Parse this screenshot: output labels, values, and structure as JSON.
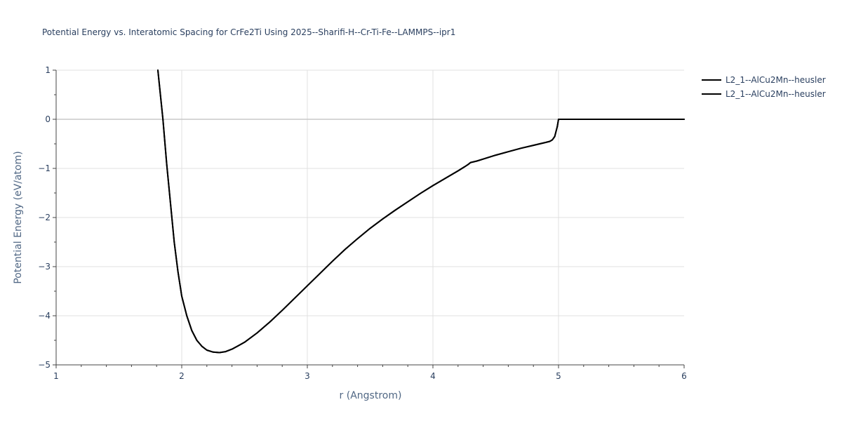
{
  "chart_data": {
    "type": "line",
    "title": "Potential Energy vs. Interatomic Spacing for CrFe2Ti Using 2025--Sharifi-H--Cr-Ti-Fe--LAMMPS--ipr1",
    "xlabel": "r (Angstrom)",
    "ylabel": "Potential Energy (eV/atom)",
    "xlim": [
      1,
      6
    ],
    "ylim": [
      -5,
      1
    ],
    "xticks": [
      1,
      2,
      3,
      4,
      5,
      6
    ],
    "yticks": [
      1,
      0,
      -1,
      -2,
      -3,
      -4,
      -5
    ],
    "xtick_labels": [
      "1",
      "2",
      "3",
      "4",
      "5",
      "6"
    ],
    "ytick_labels": [
      "1",
      "0",
      "−1",
      "−2",
      "−3",
      "−4",
      "−5"
    ],
    "grid": true,
    "legend_position": "top-right",
    "series": [
      {
        "name": "L2_1--AlCu2Mn--heusler",
        "color": "#000000",
        "x": [
          1.81,
          1.85,
          1.88,
          1.91,
          1.94,
          1.97,
          2.0,
          2.04,
          2.08,
          2.12,
          2.16,
          2.2,
          2.25,
          2.3,
          2.35,
          2.4,
          2.45,
          2.5,
          2.6,
          2.7,
          2.8,
          2.9,
          3.0,
          3.1,
          3.2,
          3.3,
          3.4,
          3.5,
          3.6,
          3.7,
          3.8,
          3.9,
          4.0,
          4.1,
          4.2,
          4.25,
          4.28,
          4.3,
          4.35,
          4.4,
          4.5,
          4.6,
          4.7,
          4.8,
          4.9,
          4.93,
          4.95,
          4.97,
          4.99,
          5.0,
          5.5,
          6.0
        ],
        "y": [
          1.0,
          0.0,
          -0.9,
          -1.7,
          -2.5,
          -3.1,
          -3.6,
          -4.0,
          -4.3,
          -4.5,
          -4.62,
          -4.7,
          -4.74,
          -4.75,
          -4.73,
          -4.68,
          -4.61,
          -4.54,
          -4.35,
          -4.13,
          -3.89,
          -3.64,
          -3.39,
          -3.14,
          -2.89,
          -2.65,
          -2.43,
          -2.22,
          -2.03,
          -1.85,
          -1.68,
          -1.51,
          -1.35,
          -1.2,
          -1.05,
          -0.97,
          -0.92,
          -0.88,
          -0.85,
          -0.81,
          -0.73,
          -0.66,
          -0.59,
          -0.53,
          -0.47,
          -0.45,
          -0.42,
          -0.35,
          -0.15,
          0.0,
          0.0,
          0.0
        ]
      },
      {
        "name": "L2_1--AlCu2Mn--heusler",
        "color": "#000000",
        "x": [
          1.81,
          1.85,
          1.88,
          1.91,
          1.94,
          1.97,
          2.0,
          2.04,
          2.08,
          2.12,
          2.16,
          2.2,
          2.25,
          2.3,
          2.35,
          2.4,
          2.45,
          2.5,
          2.6,
          2.7,
          2.8,
          2.9,
          3.0,
          3.1,
          3.2,
          3.3,
          3.4,
          3.5,
          3.6,
          3.7,
          3.8,
          3.9,
          4.0,
          4.1,
          4.2,
          4.25,
          4.28,
          4.3,
          4.35,
          4.4,
          4.5,
          4.6,
          4.7,
          4.8,
          4.9,
          4.93,
          4.95,
          4.97,
          4.99,
          5.0,
          5.5,
          6.0
        ],
        "y": [
          1.0,
          0.0,
          -0.9,
          -1.7,
          -2.5,
          -3.1,
          -3.6,
          -4.0,
          -4.3,
          -4.5,
          -4.62,
          -4.7,
          -4.74,
          -4.75,
          -4.73,
          -4.68,
          -4.61,
          -4.54,
          -4.35,
          -4.13,
          -3.89,
          -3.64,
          -3.39,
          -3.14,
          -2.89,
          -2.65,
          -2.43,
          -2.22,
          -2.03,
          -1.85,
          -1.68,
          -1.51,
          -1.35,
          -1.2,
          -1.05,
          -0.97,
          -0.92,
          -0.88,
          -0.85,
          -0.81,
          -0.73,
          -0.66,
          -0.59,
          -0.53,
          -0.47,
          -0.45,
          -0.42,
          -0.35,
          -0.15,
          0.0,
          0.0,
          0.0
        ]
      }
    ]
  }
}
